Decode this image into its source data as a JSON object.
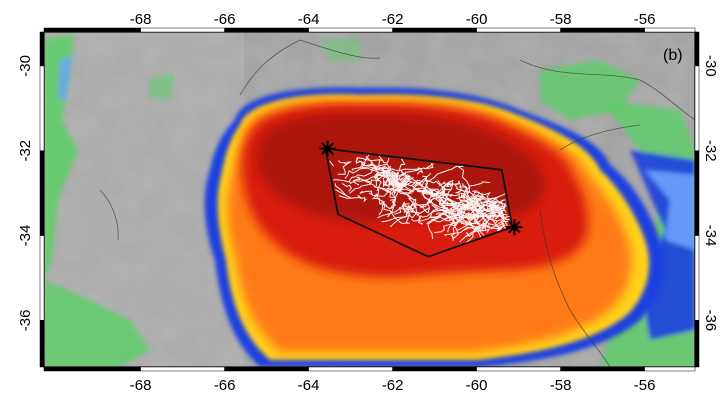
{
  "panel_label": "(b)",
  "axes": {
    "x_ticks": [
      "-68",
      "-66",
      "-64",
      "-62",
      "-60",
      "-58",
      "-56"
    ],
    "y_ticks": [
      "-30",
      "-32",
      "-34",
      "-36"
    ],
    "x_tick_values": [
      -68,
      -66,
      -64,
      -62,
      -60,
      -58,
      -56
    ],
    "y_tick_values": [
      -30,
      -32,
      -34,
      -36
    ],
    "lon_range": [
      -70.3,
      -54.8
    ],
    "lat_range": [
      -29.2,
      -37.1
    ]
  },
  "colors": {
    "land_gray": "#9e9e9e",
    "cold_cloud_red": "#d81a0c",
    "deep_red": "#a5120a",
    "orange": "#ff7a12",
    "yellow": "#ffd21a",
    "blue": "#1d3fe0",
    "light_blue": "#6aa2ff",
    "green": "#5fcd6a",
    "lightning_path": "#ffffff",
    "hull_outline": "#111111"
  },
  "flash": {
    "hull_lonlat": [
      [
        -63.6,
        -31.95
      ],
      [
        -59.4,
        -32.45
      ],
      [
        -59.15,
        -33.8
      ],
      [
        -61.15,
        -34.5
      ],
      [
        -63.3,
        -33.5
      ],
      [
        -63.6,
        -31.95
      ]
    ],
    "endpoints_lonlat": [
      [
        -63.55,
        -31.95
      ],
      [
        -59.1,
        -33.8
      ]
    ]
  }
}
